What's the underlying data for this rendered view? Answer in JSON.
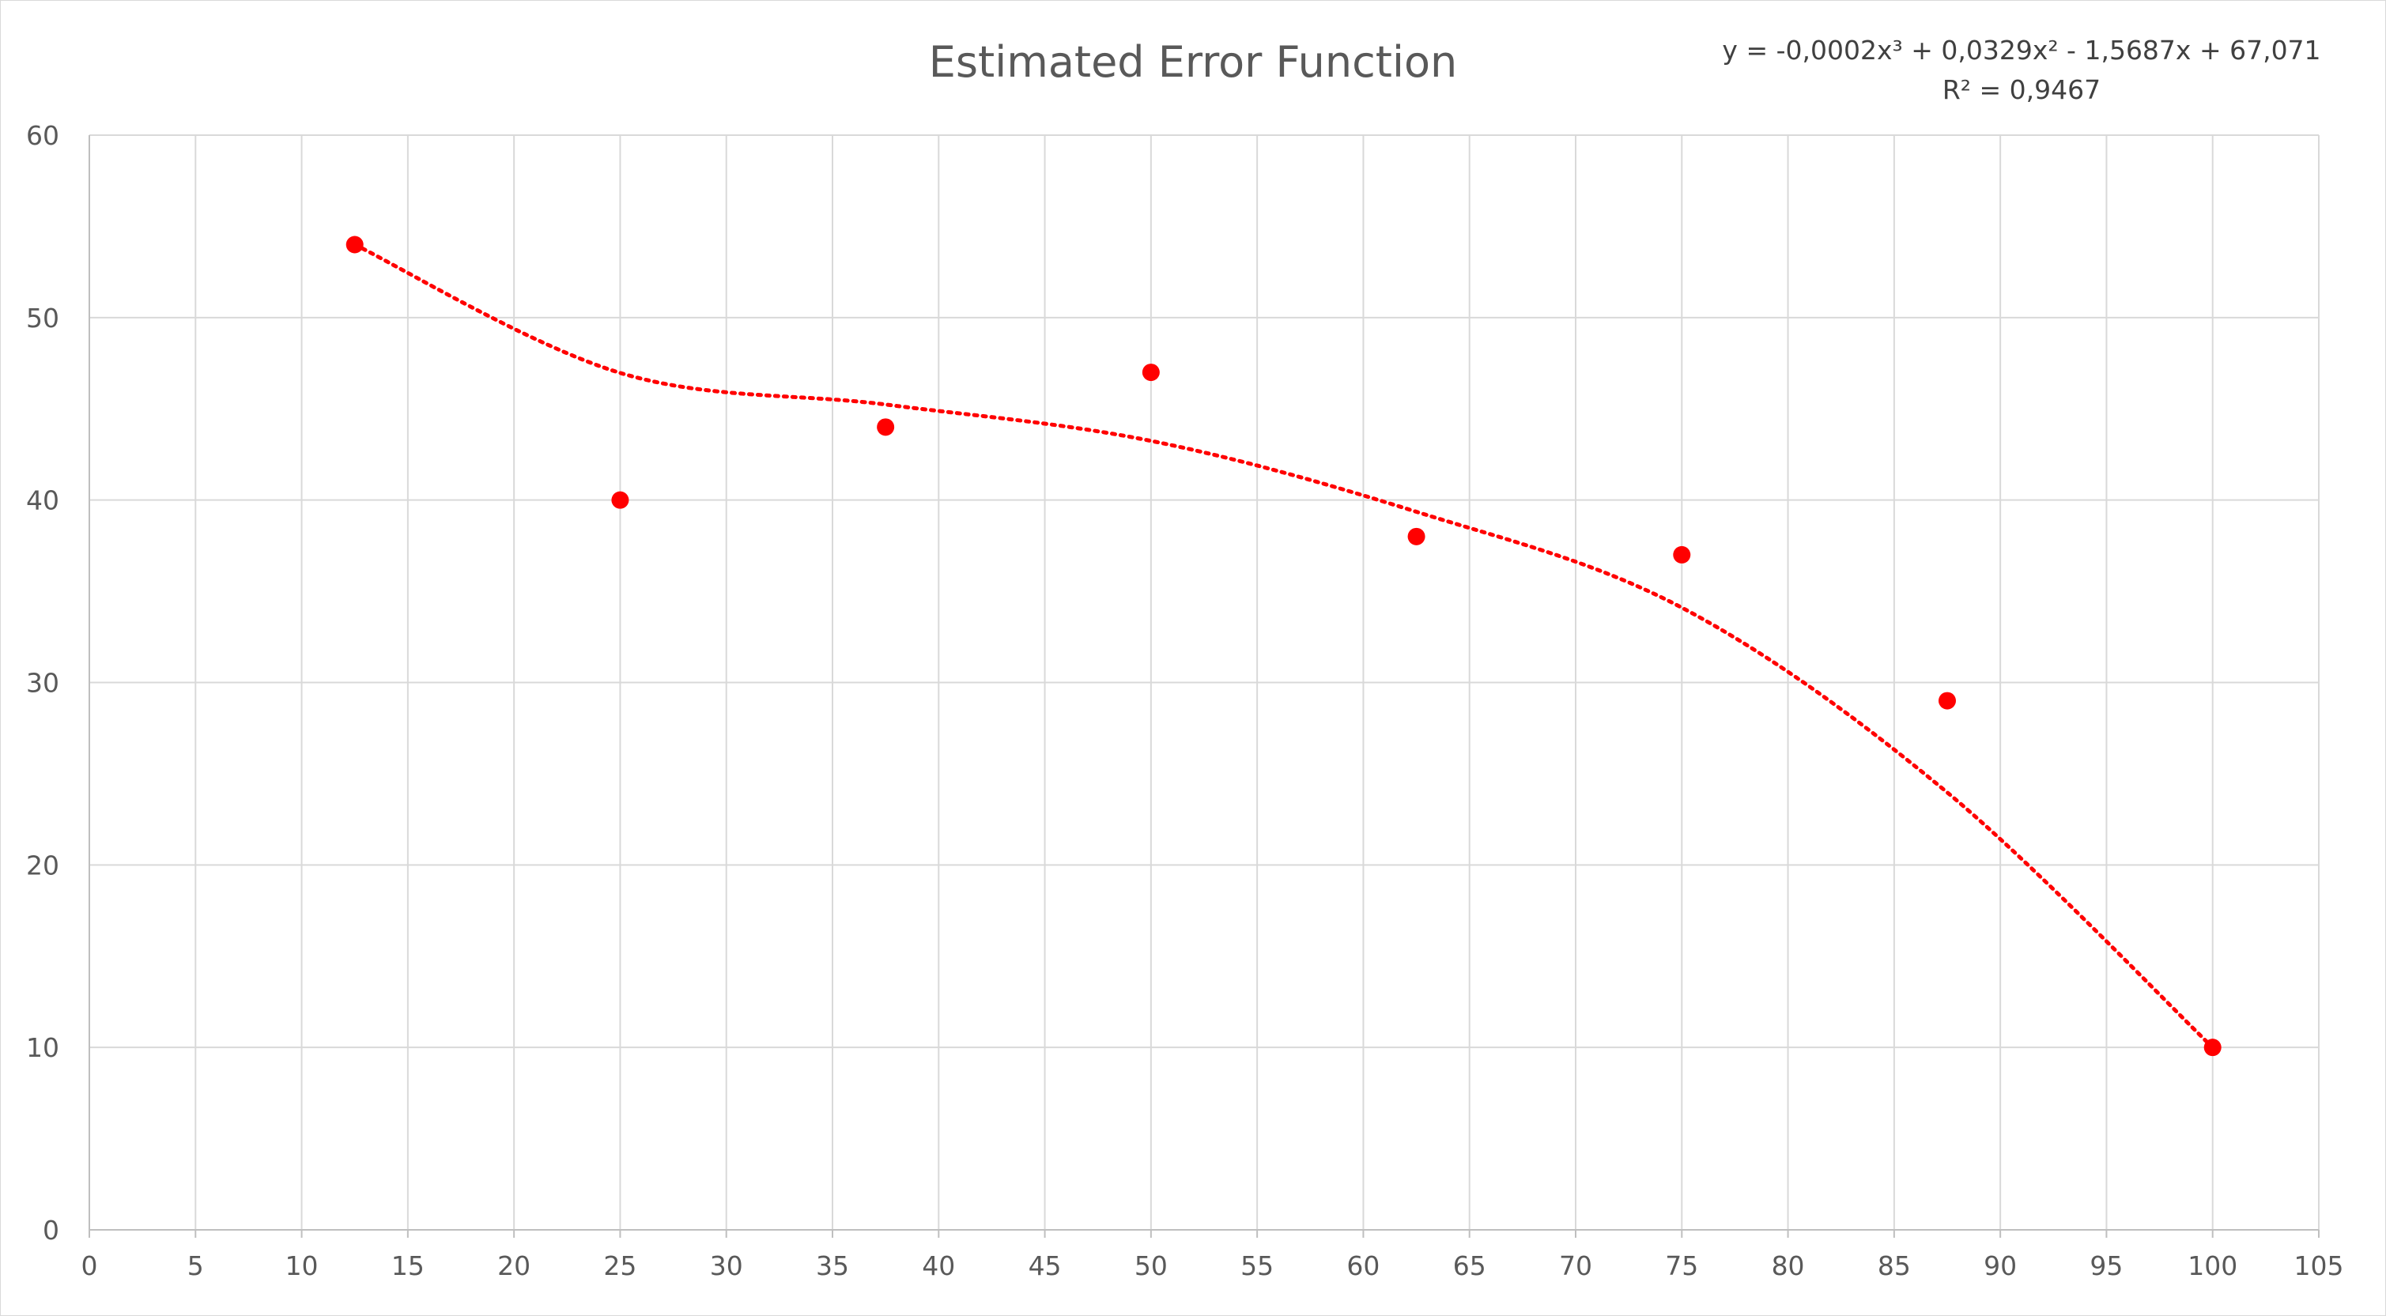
{
  "chart_data": {
    "type": "scatter",
    "title": "Estimated Error Function",
    "xlabel": "",
    "ylabel": "",
    "xlim": [
      0,
      105
    ],
    "ylim": [
      0,
      60
    ],
    "x_ticks": [
      0,
      5,
      10,
      15,
      20,
      25,
      30,
      35,
      40,
      45,
      50,
      55,
      60,
      65,
      70,
      75,
      80,
      85,
      90,
      95,
      100,
      105
    ],
    "y_ticks": [
      0,
      10,
      20,
      30,
      40,
      50,
      60
    ],
    "grid": true,
    "legend": "none",
    "series": [
      {
        "x": [
          12.5,
          25,
          37.5,
          50,
          62.5,
          75,
          87.5,
          100
        ],
        "y": [
          54,
          40,
          44,
          47,
          38,
          37,
          29,
          10
        ],
        "color": "#ff0000",
        "marker": "circle"
      }
    ],
    "trendline": {
      "type": "polynomial",
      "order": 3,
      "coefficients": [
        -0.0002,
        0.0329,
        -1.5687,
        67.071
      ],
      "x_range": [
        12.5,
        100
      ],
      "style": "dotted",
      "color": "#ff0000",
      "equation_label": "y = -0,0002x³ + 0,0329x² - 1,5687x + 67,071",
      "r2_label": "R² = 0,9467"
    }
  }
}
